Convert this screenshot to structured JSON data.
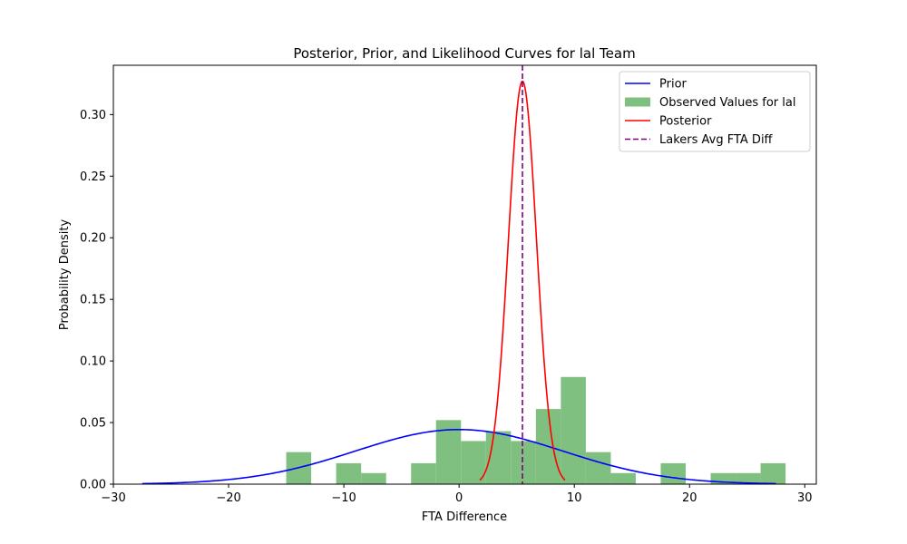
{
  "chart_data": {
    "type": "histogram+line",
    "title": "Posterior, Prior, and Likelihood Curves for lal Team",
    "xlabel": "FTA Difference",
    "ylabel": "Probability Density",
    "xlim": [
      -30,
      31
    ],
    "ylim": [
      0,
      0.34
    ],
    "x_ticks": [
      -30,
      -20,
      -10,
      0,
      10,
      20,
      30
    ],
    "x_tick_labels": [
      "−30",
      "−20",
      "−10",
      "0",
      "10",
      "20",
      "30"
    ],
    "y_ticks": [
      0.0,
      0.05,
      0.1,
      0.15,
      0.2,
      0.25,
      0.3
    ],
    "y_tick_labels": [
      "0.00",
      "0.05",
      "0.10",
      "0.15",
      "0.20",
      "0.25",
      "0.30"
    ],
    "grid": false,
    "legend_position": "top-right",
    "histogram": {
      "name": "Observed Values for lal",
      "color": "#7fbf7f",
      "bin_edges": [
        -15.0,
        -12.833,
        -10.667,
        -8.5,
        -6.333,
        -4.167,
        -2.0,
        0.167,
        2.333,
        4.5,
        6.667,
        8.833,
        11.0,
        13.167,
        15.333,
        17.5,
        19.667,
        21.833,
        24.0,
        26.167,
        28.333
      ],
      "density": [
        0.026,
        0.0,
        0.017,
        0.009,
        0.0,
        0.017,
        0.052,
        0.035,
        0.043,
        0.035,
        0.061,
        0.087,
        0.026,
        0.009,
        0.0,
        0.017,
        0.0,
        0.009,
        0.009,
        0.017
      ]
    },
    "curves": [
      {
        "name": "Prior",
        "color": "#0000ff",
        "kind": "normal",
        "mean": 0,
        "sd": 9,
        "x_range": [
          -27.5,
          27.5
        ]
      },
      {
        "name": "Posterior",
        "color": "#ff0000",
        "kind": "normal",
        "mean": 5.5,
        "sd": 1.22,
        "x_range": [
          1.8,
          9.2
        ]
      }
    ],
    "vlines": [
      {
        "name": "Lakers Avg FTA Diff",
        "color": "#800080",
        "x": 5.5,
        "style": "dashed"
      }
    ],
    "legend_order": [
      "Prior",
      "Observed Values for lal",
      "Posterior",
      "Lakers Avg FTA Diff"
    ]
  }
}
